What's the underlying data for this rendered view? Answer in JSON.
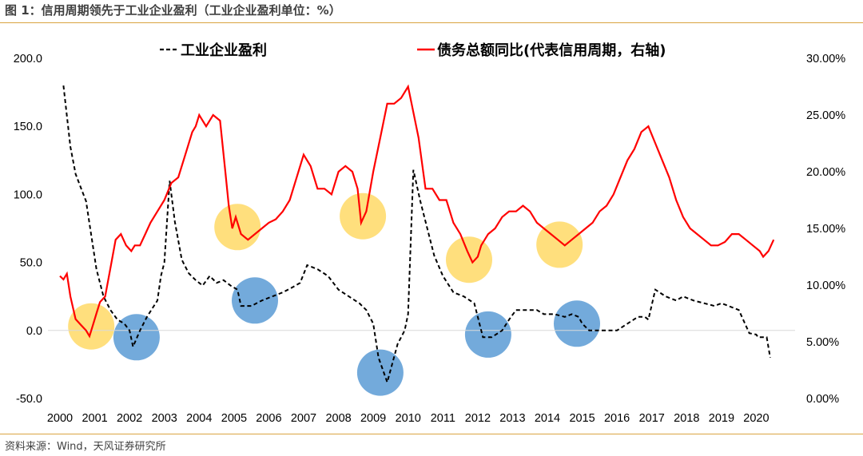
{
  "header": {
    "title": "图 1：信用周期领先于工业企业盈利（工业企业盈利单位：%）"
  },
  "footer": {
    "source": "资料来源：Wind，天风证券研究所"
  },
  "colors": {
    "profit": "#000000",
    "credit": "#ff0000",
    "yellow": "#ffd966",
    "blue": "#5b9bd5",
    "rule": "#d9a441"
  },
  "chart_data": {
    "type": "line",
    "title": "",
    "xlabel": "",
    "ylabel": "",
    "y_left_ticks": [
      "200.0",
      "150.0",
      "100.0",
      "50.0",
      "0.0",
      "-50.0"
    ],
    "y_right_ticks": [
      "30.00%",
      "25.00%",
      "20.00%",
      "15.00%",
      "10.00%",
      "5.00%",
      "0.00%"
    ],
    "ylim_left": [
      -50,
      200
    ],
    "ylim_right": [
      0,
      30
    ],
    "xlim": [
      2000,
      2021
    ],
    "x_ticks": [
      "2000",
      "2001",
      "2002",
      "2003",
      "2004",
      "2005",
      "2006",
      "2007",
      "2008",
      "2009",
      "2010",
      "2011",
      "2012",
      "2013",
      "2014",
      "2015",
      "2016",
      "2017",
      "2018",
      "2019",
      "2020"
    ],
    "legend": [
      "工业企业盈利",
      "债务总额同比(代表信用周期，右轴)"
    ],
    "series": [
      {
        "name": "工业企业盈利",
        "axis": "left",
        "style": "dashed",
        "x": [
          2000.1,
          2000.3,
          2000.45,
          2000.6,
          2000.75,
          2000.9,
          2001.05,
          2001.25,
          2001.45,
          2001.65,
          2001.85,
          2002.0,
          2002.1,
          2002.3,
          2002.5,
          2002.7,
          2002.8,
          2002.9,
          2003.0,
          2003.15,
          2003.3,
          2003.5,
          2003.7,
          2003.9,
          2004.1,
          2004.3,
          2004.5,
          2004.7,
          2004.9,
          2005.1,
          2005.2,
          2005.5,
          2005.8,
          2006.1,
          2006.4,
          2006.7,
          2006.9,
          2007.1,
          2007.4,
          2007.7,
          2008.0,
          2008.3,
          2008.6,
          2008.8,
          2009.0,
          2009.15,
          2009.4,
          2009.7,
          2009.9,
          2010.0,
          2010.15,
          2010.35,
          2010.55,
          2010.75,
          2011.0,
          2011.3,
          2011.6,
          2011.9,
          2012.0,
          2012.15,
          2012.4,
          2012.7,
          2012.9,
          2013.1,
          2013.4,
          2013.7,
          2013.9,
          2014.2,
          2014.5,
          2014.7,
          2014.9,
          2015.0,
          2015.2,
          2015.5,
          2015.8,
          2016.0,
          2016.3,
          2016.6,
          2016.8,
          2016.9,
          2017.1,
          2017.4,
          2017.7,
          2017.9,
          2018.2,
          2018.5,
          2018.8,
          2019.0,
          2019.2,
          2019.5,
          2019.8,
          2020.0,
          2020.05,
          2020.2,
          2020.3,
          2020.4
        ],
        "values": [
          180,
          135,
          115,
          105,
          95,
          70,
          45,
          25,
          15,
          8,
          5,
          0,
          -12,
          0,
          10,
          18,
          22,
          40,
          50,
          110,
          80,
          52,
          42,
          37,
          33,
          40,
          35,
          37,
          33,
          30,
          18,
          18,
          22,
          25,
          28,
          32,
          35,
          48,
          45,
          40,
          30,
          25,
          20,
          15,
          5,
          -20,
          -38,
          -10,
          0,
          12,
          118,
          95,
          75,
          55,
          40,
          28,
          25,
          20,
          10,
          -5,
          -5,
          0,
          8,
          15,
          15,
          15,
          12,
          12,
          10,
          12,
          10,
          5,
          0,
          0,
          0,
          0,
          5,
          10,
          10,
          8,
          30,
          25,
          22,
          25,
          22,
          20,
          18,
          20,
          18,
          15,
          -2,
          -3,
          -5,
          -5,
          -5,
          -20
        ]
      },
      {
        "name": "债务总额同比(代表信用周期，右轴)",
        "axis": "right",
        "x": [
          2000.0,
          2000.1,
          2000.2,
          2000.3,
          2000.45,
          2000.6,
          2000.75,
          2000.85,
          2000.95,
          2001.05,
          2001.15,
          2001.3,
          2001.45,
          2001.6,
          2001.75,
          2001.9,
          2002.05,
          2002.15,
          2002.3,
          2002.45,
          2002.6,
          2002.8,
          2003.0,
          2003.2,
          2003.4,
          2003.6,
          2003.8,
          2003.9,
          2004.0,
          2004.1,
          2004.2,
          2004.4,
          2004.6,
          2004.75,
          2004.85,
          2004.95,
          2005.05,
          2005.2,
          2005.4,
          2005.6,
          2005.8,
          2006.0,
          2006.2,
          2006.4,
          2006.6,
          2006.8,
          2007.0,
          2007.2,
          2007.4,
          2007.6,
          2007.8,
          2008.0,
          2008.2,
          2008.4,
          2008.55,
          2008.65,
          2008.8,
          2009.0,
          2009.2,
          2009.4,
          2009.6,
          2009.8,
          2010.0,
          2010.1,
          2010.3,
          2010.5,
          2010.7,
          2010.9,
          2011.1,
          2011.3,
          2011.5,
          2011.7,
          2011.85,
          2012.0,
          2012.1,
          2012.3,
          2012.5,
          2012.7,
          2012.9,
          2013.1,
          2013.3,
          2013.5,
          2013.7,
          2013.9,
          2014.1,
          2014.3,
          2014.5,
          2014.7,
          2014.9,
          2015.1,
          2015.3,
          2015.5,
          2015.7,
          2015.9,
          2016.1,
          2016.3,
          2016.5,
          2016.7,
          2016.9,
          2017.1,
          2017.3,
          2017.5,
          2017.7,
          2017.9,
          2018.1,
          2018.3,
          2018.5,
          2018.7,
          2018.9,
          2019.1,
          2019.3,
          2019.5,
          2019.7,
          2019.9,
          2020.1,
          2020.2,
          2020.35,
          2020.5
        ],
        "values": [
          10.8,
          10.5,
          11.0,
          9.0,
          7.0,
          6.5,
          6.0,
          5.5,
          6.5,
          7.5,
          8.5,
          9.0,
          11.5,
          14.0,
          14.5,
          13.5,
          13.0,
          13.5,
          13.5,
          14.5,
          15.5,
          16.5,
          17.5,
          19.0,
          19.5,
          21.5,
          23.5,
          24.0,
          25.0,
          24.5,
          24.0,
          25.0,
          24.5,
          20.0,
          17.0,
          15.0,
          16.0,
          14.5,
          14.0,
          14.5,
          15.0,
          15.5,
          15.8,
          16.5,
          17.5,
          19.5,
          21.5,
          20.5,
          18.5,
          18.5,
          18.0,
          20.0,
          20.5,
          20.0,
          18.5,
          15.5,
          16.5,
          20.0,
          23.0,
          26.0,
          26.0,
          26.5,
          27.5,
          26.0,
          23.0,
          18.5,
          18.5,
          17.5,
          17.5,
          15.5,
          14.5,
          13.0,
          12.0,
          12.5,
          13.5,
          14.5,
          15.0,
          16.0,
          16.5,
          16.5,
          17.0,
          16.5,
          15.5,
          15.0,
          14.5,
          14.0,
          13.5,
          14.0,
          14.5,
          15.0,
          15.5,
          16.5,
          17.0,
          18.0,
          19.5,
          21.0,
          22.0,
          23.5,
          24.0,
          22.5,
          21.0,
          19.5,
          17.5,
          16.0,
          15.0,
          14.5,
          14.0,
          13.5,
          13.5,
          13.8,
          14.5,
          14.5,
          14.0,
          13.5,
          13.0,
          12.5,
          13.0,
          14.0
        ]
      }
    ],
    "highlights": [
      {
        "x": 2000.9,
        "y": 3,
        "color": "yellow"
      },
      {
        "x": 2005.1,
        "y": 76,
        "color": "yellow"
      },
      {
        "x": 2008.7,
        "y": 84,
        "color": "yellow"
      },
      {
        "x": 2011.75,
        "y": 52,
        "color": "yellow"
      },
      {
        "x": 2014.35,
        "y": 63,
        "color": "yellow"
      },
      {
        "x": 2002.2,
        "y": -5,
        "color": "blue"
      },
      {
        "x": 2005.6,
        "y": 22,
        "color": "blue"
      },
      {
        "x": 2009.2,
        "y": -31,
        "color": "blue"
      },
      {
        "x": 2012.3,
        "y": -3,
        "color": "blue"
      },
      {
        "x": 2014.85,
        "y": 5,
        "color": "blue"
      }
    ]
  }
}
